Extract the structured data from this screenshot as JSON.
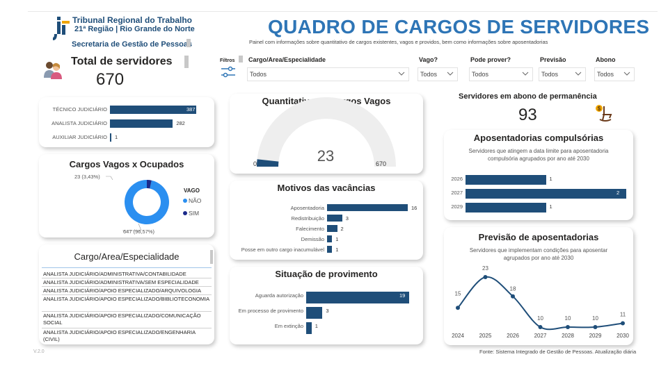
{
  "header": {
    "org_line1": "Tribunal Regional do Trabalho",
    "org_line2": "21ª Região | Rio Grande do Norte",
    "org_line3": "Secretaria de Gestão de Pessoas",
    "title": "QUADRO DE CARGOS DE SERVIDORES",
    "subtitle": "Painel com informações sobre quantitativo de cargos existentes, vagos e providos, bem como informações sobre aposentadorias"
  },
  "total": {
    "label": "Total de servidores",
    "value": "670"
  },
  "cargos_bar": {
    "items": [
      {
        "label": "TÉCNICO JUDICIÁRIO",
        "value": 387
      },
      {
        "label": "ANALISTA JUDICIÁRIO",
        "value": 282
      },
      {
        "label": "AUXILIAR JUDICIÁRIO",
        "value": 1
      }
    ]
  },
  "filters": {
    "title": "Filtros",
    "fields": [
      {
        "label": "Cargo/Area/Especialidade",
        "value": "Todos"
      },
      {
        "label": "Vago?",
        "value": "Todos"
      },
      {
        "label": "Pode prover?",
        "value": "Todos"
      },
      {
        "label": "Previsão",
        "value": "Todos"
      },
      {
        "label": "Abono",
        "value": "Todos"
      }
    ]
  },
  "vagos_gauge": {
    "title": "Quantitativo de Cargos Vagos",
    "value": 23,
    "min": "0",
    "max": "670",
    "value_label": "23"
  },
  "donut": {
    "title": "Cargos Vagos x Ocupados",
    "legend_title": "VAGO",
    "slices": [
      {
        "name": "NÃO",
        "label": "647 (96,57%)",
        "value": 647
      },
      {
        "name": "SIM",
        "label": "23 (3,43%)",
        "value": 23
      }
    ]
  },
  "motivos": {
    "title": "Motivos das vacâncias",
    "items": [
      {
        "label": "Aposentadoria",
        "value": 16
      },
      {
        "label": "Redistribuição",
        "value": 3
      },
      {
        "label": "Falecimento",
        "value": 2
      },
      {
        "label": "Demissão",
        "value": 1
      },
      {
        "label": "Posse em outro cargo inacumulável",
        "value": 1
      }
    ]
  },
  "situacao": {
    "title": "Situação de provimento",
    "items": [
      {
        "label": "Aguarda autorização",
        "value": 19
      },
      {
        "label": "Em processo de provimento",
        "value": 3
      },
      {
        "label": "Em extinção",
        "value": 1
      }
    ]
  },
  "cargo_list": {
    "title": "Cargo/Area/Especialidade",
    "items": [
      "ANALISTA JUDICIÁRIO/ADMINISTRATIVA/CONTABILIDADE",
      "ANALISTA JUDICIÁRIO/ADMINISTRATIVA/SEM ESPECIALIDADE",
      "ANALISTA JUDICIÁRIO/APOIO ESPECIALIZADO/ARQUIVOLOGIA",
      "ANALISTA JUDICIÁRIO/APOIO ESPECIALIZADO/BIBLIOTECONOMIA",
      "ANALISTA JUDICIÁRIO/APOIO ESPECIALIZADO/COMUNICAÇÃO SOCIAL",
      "ANALISTA JUDICIÁRIO/APOIO ESPECIALIZADO/ENGENHARIA (CIVIL)"
    ]
  },
  "abono": {
    "title": "Servidores em abono de permanência",
    "value": "93"
  },
  "compulsorias": {
    "title": "Aposentadorias compulsórias",
    "subtitle": "Servidores que atingem a data limite para aposentadoria compulsória agrupados por ano até 2030",
    "items": [
      {
        "label": "2026",
        "value": 1
      },
      {
        "label": "2027",
        "value": 2
      },
      {
        "label": "2029",
        "value": 1
      }
    ]
  },
  "previsao": {
    "title": "Previsão de aposentadorias",
    "subtitle": "Servidores que implementam condições para aposentar agrupados por ano até 2030"
  },
  "chart_data": {
    "type": "line",
    "title": "Previsão de aposentadorias",
    "x": [
      "2024",
      "2025",
      "2026",
      "2027",
      "2028",
      "2029",
      "2030"
    ],
    "series": [
      {
        "values": [
          15,
          23,
          18,
          10,
          10,
          10,
          11
        ]
      }
    ]
  },
  "colors": {
    "bar": "#1f4e79",
    "title_blue": "#2e75b6",
    "donut_nao": "#2b8ff0",
    "donut_sim": "#1b2a8a",
    "gauge_track": "#eeeeee"
  },
  "footer": {
    "source": "Fonte: Sistema Integrado de Gestão de Pessoas. Atualização diária",
    "version": "V.2.0"
  }
}
